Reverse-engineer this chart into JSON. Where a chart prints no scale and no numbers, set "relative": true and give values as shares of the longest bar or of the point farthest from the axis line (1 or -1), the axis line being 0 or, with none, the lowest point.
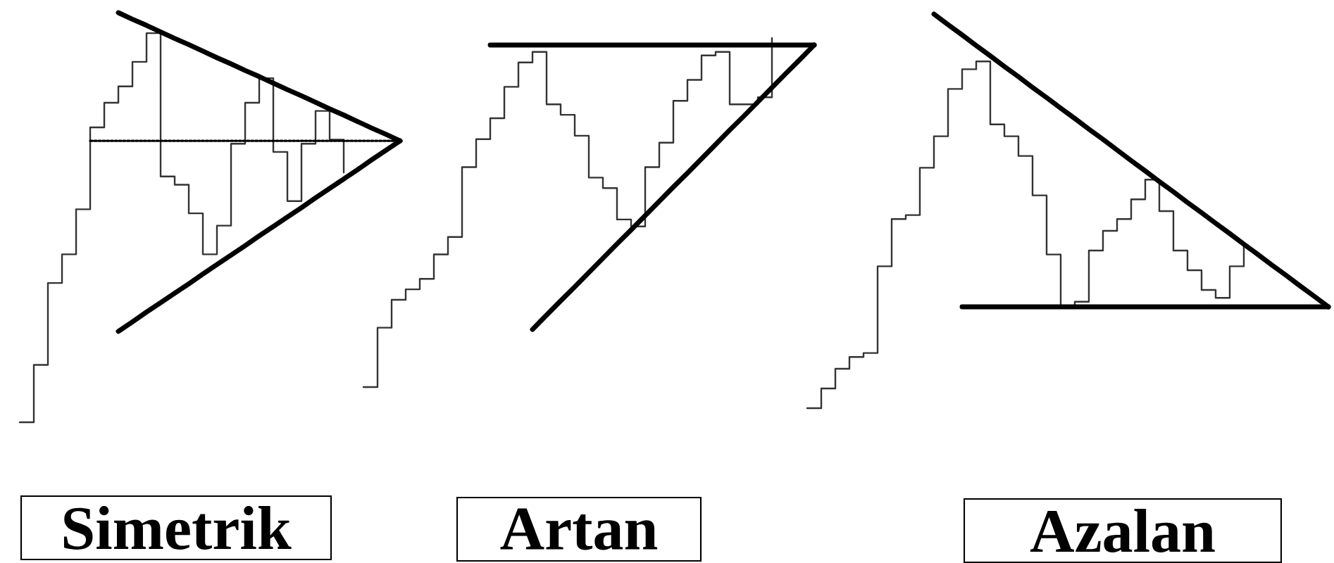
{
  "chart_data": [
    {
      "type": "step",
      "title": "Simetrik",
      "relative": true,
      "categories": [
        null,
        null,
        null,
        null,
        null,
        null,
        null,
        null,
        null,
        null,
        null,
        null,
        null,
        null,
        null,
        null,
        null,
        null,
        null,
        null,
        null,
        null,
        null,
        null,
        null,
        null,
        null,
        null
      ],
      "series": [
        {
          "color": "#333333",
          "values": [
            0,
            0.14,
            0.34,
            0.41,
            0.52,
            0.72,
            0.78,
            0.82,
            0.88,
            0.95,
            0.6,
            0.58,
            0.51,
            0.41,
            0.48,
            0.68,
            0.78,
            0.84,
            0.66,
            0.54,
            0.68,
            0.76,
            0.69,
            0.61,
            null,
            null,
            null,
            null
          ]
        },
        {
          "type": "line",
          "color": "#000000",
          "values": [
            null,
            null,
            null,
            null,
            null,
            null,
            null,
            1.0,
            0.984,
            0.969,
            0.953,
            0.937,
            0.922,
            0.906,
            0.89,
            0.875,
            0.859,
            0.844,
            0.828,
            0.812,
            0.797,
            0.781,
            0.765,
            0.75,
            0.734,
            0.718,
            0.703,
            0.687
          ]
        },
        {
          "type": "line",
          "color": "#000000",
          "values": [
            null,
            null,
            null,
            null,
            null,
            null,
            null,
            0.222,
            0.245,
            0.269,
            0.292,
            0.315,
            0.338,
            0.362,
            0.385,
            0.408,
            0.431,
            0.455,
            0.478,
            0.501,
            0.524,
            0.548,
            0.571,
            0.594,
            0.617,
            0.641,
            0.664,
            0.687
          ]
        },
        {
          "type": "line",
          "color": "#000000",
          "line_style": "dotted",
          "values": [
            null,
            null,
            null,
            null,
            null,
            0.687,
            0.687,
            0.687,
            0.687,
            0.687,
            0.687,
            0.687,
            0.687,
            0.687,
            0.687,
            0.687,
            0.687,
            0.687,
            0.687,
            0.687,
            0.687,
            0.687,
            0.687,
            0.687,
            0.687,
            0.687,
            0.687,
            0.687
          ]
        }
      ]
    },
    {
      "type": "step",
      "title": "Artan",
      "relative": true,
      "categories": [
        null,
        null,
        null,
        null,
        null,
        null,
        null,
        null,
        null,
        null,
        null,
        null,
        null,
        null,
        null,
        null,
        null,
        null,
        null,
        null,
        null,
        null,
        null,
        null,
        null,
        null,
        null,
        null,
        null,
        null,
        null,
        null,
        null
      ],
      "series": [
        {
          "color": "#333333",
          "values": [
            0,
            0.17,
            0.25,
            0.28,
            0.31,
            0.38,
            0.43,
            0.63,
            0.71,
            0.77,
            0.86,
            0.93,
            0.96,
            0.81,
            0.78,
            0.72,
            0.6,
            0.57,
            0.48,
            0.46,
            0.63,
            0.7,
            0.82,
            0.88,
            0.95,
            0.96,
            0.81,
            0.81,
            0.83,
            1.0,
            null,
            null,
            null
          ]
        },
        {
          "type": "line",
          "color": "#000000",
          "values": [
            null,
            null,
            null,
            null,
            null,
            null,
            null,
            null,
            null,
            0.98,
            0.98,
            0.98,
            0.98,
            0.98,
            0.98,
            0.98,
            0.98,
            0.98,
            0.98,
            0.98,
            0.98,
            0.98,
            0.98,
            0.98,
            0.98,
            0.98,
            0.98,
            0.98,
            0.98,
            0.98,
            0.98,
            0.98,
            0.98
          ]
        },
        {
          "type": "line",
          "color": "#000000",
          "values": [
            null,
            null,
            null,
            null,
            null,
            null,
            null,
            null,
            null,
            null,
            null,
            null,
            0.165,
            0.206,
            0.247,
            0.287,
            0.328,
            0.369,
            0.41,
            0.45,
            0.491,
            0.532,
            0.573,
            0.613,
            0.654,
            0.695,
            0.736,
            0.776,
            0.817,
            0.858,
            0.899,
            0.939,
            0.98
          ]
        }
      ]
    },
    {
      "type": "step",
      "title": "Azalan",
      "relative": true,
      "categories": [
        null,
        null,
        null,
        null,
        null,
        null,
        null,
        null,
        null,
        null,
        null,
        null,
        null,
        null,
        null,
        null,
        null,
        null,
        null,
        null,
        null,
        null,
        null,
        null,
        null,
        null,
        null,
        null,
        null,
        null,
        null,
        null,
        null,
        null,
        null,
        null,
        null,
        null
      ],
      "series": [
        {
          "color": "#333333",
          "values": [
            0,
            0.05,
            0.1,
            0.13,
            0.14,
            0.36,
            0.48,
            0.49,
            0.61,
            0.69,
            0.81,
            0.86,
            0.88,
            0.72,
            0.69,
            0.64,
            0.54,
            0.39,
            0.26,
            0.27,
            0.4,
            0.45,
            0.48,
            0.53,
            0.58,
            0.5,
            0.4,
            0.35,
            0.3,
            0.28,
            0.36,
            0.42,
            null,
            null,
            null,
            null,
            null,
            null
          ]
        },
        {
          "type": "line",
          "color": "#000000",
          "values": [
            null,
            null,
            null,
            null,
            null,
            null,
            null,
            null,
            null,
            1.0,
            0.973,
            0.947,
            0.92,
            0.894,
            0.867,
            0.841,
            0.814,
            0.788,
            0.761,
            0.735,
            0.708,
            0.682,
            0.655,
            0.628,
            0.602,
            0.575,
            0.549,
            0.522,
            0.496,
            0.469,
            0.443,
            0.416,
            0.39,
            0.363,
            0.337,
            0.31,
            0.284,
            0.257
          ]
        },
        {
          "type": "line",
          "color": "#000000",
          "values": [
            null,
            null,
            null,
            null,
            null,
            null,
            null,
            null,
            null,
            null,
            null,
            0.257,
            0.257,
            0.257,
            0.257,
            0.257,
            0.257,
            0.257,
            0.257,
            0.257,
            0.257,
            0.257,
            0.257,
            0.257,
            0.257,
            0.257,
            0.257,
            0.257,
            0.257,
            0.257,
            0.257,
            0.257,
            0.257,
            0.257,
            0.257,
            0.257,
            0.257,
            0.257
          ]
        }
      ]
    }
  ]
}
